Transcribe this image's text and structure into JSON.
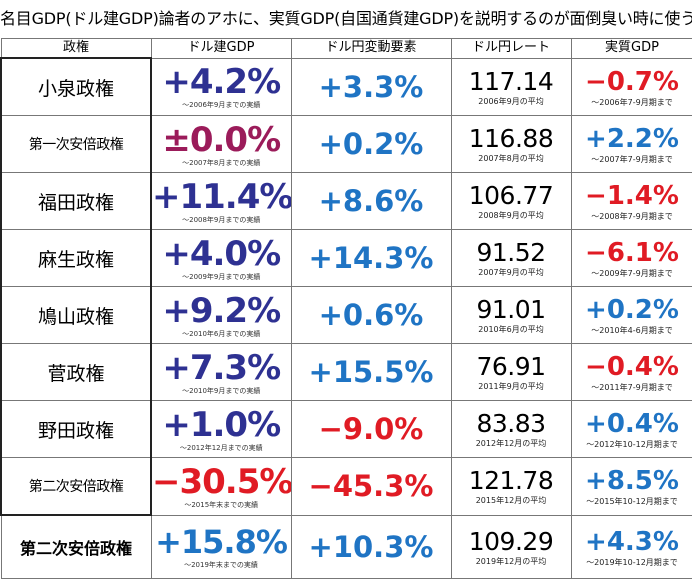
{
  "title": "名目GDP(ドル建GDP)論者のアホに、実質GDP(自国通貨建GDP)を説明するのが面倒臭い時に使う表",
  "headers": [
    "政権",
    "ドル建GDP",
    "ドル円変動要素",
    "ドル円レート",
    "実質GDP"
  ],
  "rows": [
    {
      "admin": "小泉政権",
      "gdp": "+4.2%",
      "gdp_note": "～2006年9月までの実績",
      "fx": "+3.3%",
      "rate": "117.14",
      "rate_note": "2006年9月の平均",
      "real": "−0.7%",
      "real_note": "～2006年7-9月期まで"
    },
    {
      "admin": "第一次安倍政権",
      "gdp": "±0.0%",
      "gdp_note": "～2007年8月までの実績",
      "fx": "+0.2%",
      "rate": "116.88",
      "rate_note": "2007年8月の平均",
      "real": "+2.2%",
      "real_note": "～2007年7-9月期まで"
    },
    {
      "admin": "福田政権",
      "gdp": "+11.4%",
      "gdp_note": "～2008年9月までの実績",
      "fx": "+8.6%",
      "rate": "106.77",
      "rate_note": "2008年9月の平均",
      "real": "−1.4%",
      "real_note": "～2008年7-9月期まで"
    },
    {
      "admin": "麻生政権",
      "gdp": "+4.0%",
      "gdp_note": "～2009年9月までの実績",
      "fx": "+14.3%",
      "rate": "91.52",
      "rate_note": "2007年9月の平均",
      "real": "−6.1%",
      "real_note": "～2009年7-9月期まで"
    },
    {
      "admin": "鳩山政権",
      "gdp": "+9.2%",
      "gdp_note": "～2010年6月までの実績",
      "fx": "+0.6%",
      "rate": "91.01",
      "rate_note": "2010年6月の平均",
      "real": "+0.2%",
      "real_note": "～2010年4-6月期まで"
    },
    {
      "admin": "菅政権",
      "gdp": "+7.3%",
      "gdp_note": "～2010年9月までの実績",
      "fx": "+15.5%",
      "rate": "76.91",
      "rate_note": "2011年9月の平均",
      "real": "−0.4%",
      "real_note": "～2011年7-9月期まで"
    },
    {
      "admin": "野田政権",
      "gdp": "+1.0%",
      "gdp_note": "～2012年12月までの実績",
      "fx": "−9.0%",
      "rate": "83.83",
      "rate_note": "2012年12月の平均",
      "real": "+0.4%",
      "real_note": "～2012年10-12月期まで"
    },
    {
      "admin": "第二次安倍政権",
      "gdp": "−30.5%",
      "gdp_note": "～2015年末までの実績",
      "fx": "−45.3%",
      "rate": "121.78",
      "rate_note": "2015年12月の平均",
      "real": "+8.5%",
      "real_note": "～2015年10-12月期まで"
    },
    {
      "admin": "第二次安倍政権",
      "gdp": "+15.8%",
      "gdp_note": "～2019年末までの実績",
      "fx": "+10.3%",
      "rate": "109.29",
      "rate_note": "2019年12月の平均",
      "real": "+4.3%",
      "real_note": "～2019年10-12月期まで"
    }
  ],
  "colors": {
    "gdp_positive": "#2e3192",
    "gdp_zero": "#9b1b5a",
    "negative": "#e01b24",
    "positive": "#1f74c4"
  }
}
